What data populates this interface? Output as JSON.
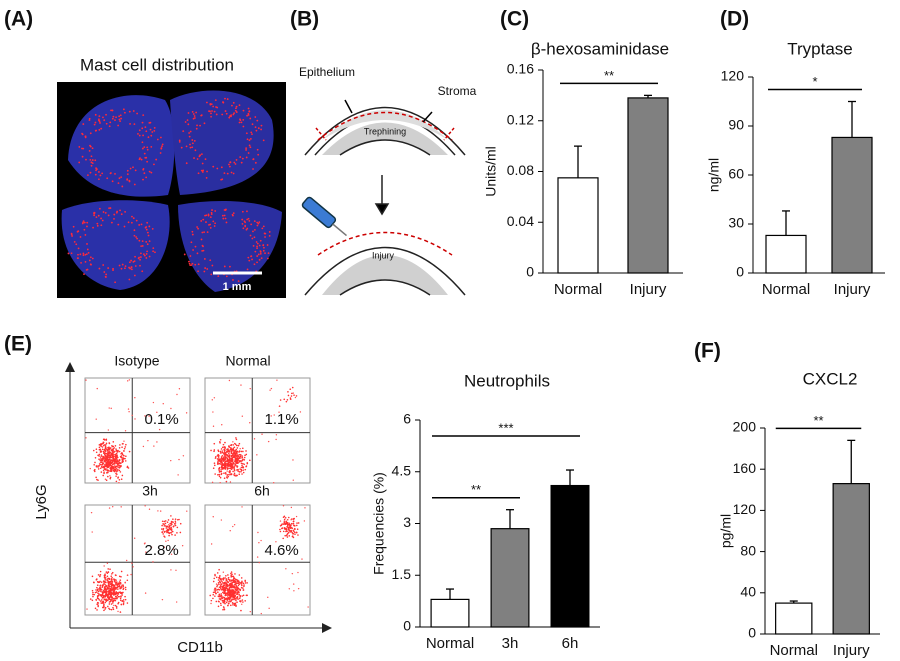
{
  "panel_a": {
    "label": "(A)",
    "title": "Mast cell distribution",
    "scale_bar": "1 mm"
  },
  "panel_b": {
    "label": "(B)",
    "epithelium": "Epithelium",
    "stroma": "Stroma",
    "trephining": "Trephining",
    "injury": "Injury"
  },
  "panel_e_flow": {
    "label": "(E)",
    "y_axis": "Ly6G",
    "x_axis": "CD11b",
    "plots": [
      {
        "title": "Isotype",
        "percent": "0.1%"
      },
      {
        "title": "Normal",
        "percent": "1.1%"
      },
      {
        "title": "3h",
        "percent": "2.8%"
      },
      {
        "title": "6h",
        "percent": "4.6%"
      }
    ]
  },
  "chart_data": [
    {
      "type": "bar",
      "panel": "(C)",
      "title": "β-hexosaminidase",
      "ylabel": "Units/ml",
      "categories": [
        "Normal",
        "Injury"
      ],
      "values": [
        0.075,
        0.138
      ],
      "errors": [
        0.025,
        0.002
      ],
      "colors": [
        "#ffffff",
        "#808080"
      ],
      "ylim": [
        0,
        0.16
      ],
      "yticks": [
        0,
        0.04,
        0.08,
        0.12,
        0.16
      ],
      "significance": [
        {
          "label": "**",
          "between": [
            "Normal",
            "Injury"
          ]
        }
      ]
    },
    {
      "type": "bar",
      "panel": "(D)",
      "title": "Tryptase",
      "ylabel": "ng/ml",
      "categories": [
        "Normal",
        "Injury"
      ],
      "values": [
        23,
        83
      ],
      "errors": [
        15,
        22
      ],
      "colors": [
        "#ffffff",
        "#808080"
      ],
      "ylim": [
        0,
        120
      ],
      "yticks": [
        0,
        30,
        60,
        90,
        120
      ],
      "significance": [
        {
          "label": "*",
          "between": [
            "Normal",
            "Injury"
          ]
        }
      ]
    },
    {
      "type": "bar",
      "title": "Neutrophils",
      "ylabel": "Frequencies (%)",
      "categories": [
        "Normal",
        "3h",
        "6h"
      ],
      "values": [
        0.8,
        2.85,
        4.1
      ],
      "errors": [
        0.3,
        0.55,
        0.45
      ],
      "colors": [
        "#ffffff",
        "#808080",
        "#000000"
      ],
      "ylim": [
        0,
        6
      ],
      "yticks": [
        0,
        1.5,
        3,
        4.5,
        6
      ],
      "significance": [
        {
          "label": "**",
          "between": [
            "Normal",
            "3h"
          ]
        },
        {
          "label": "***",
          "between": [
            "Normal",
            "6h"
          ]
        }
      ]
    },
    {
      "type": "bar",
      "panel": "(F)",
      "title": "CXCL2",
      "ylabel": "pg/ml",
      "categories": [
        "Normal",
        "Injury"
      ],
      "values": [
        30,
        146
      ],
      "errors": [
        2,
        42
      ],
      "colors": [
        "#ffffff",
        "#808080"
      ],
      "ylim": [
        0,
        200
      ],
      "yticks": [
        0,
        40,
        80,
        120,
        160,
        200
      ],
      "significance": [
        {
          "label": "**",
          "between": [
            "Normal",
            "Injury"
          ]
        }
      ]
    }
  ]
}
